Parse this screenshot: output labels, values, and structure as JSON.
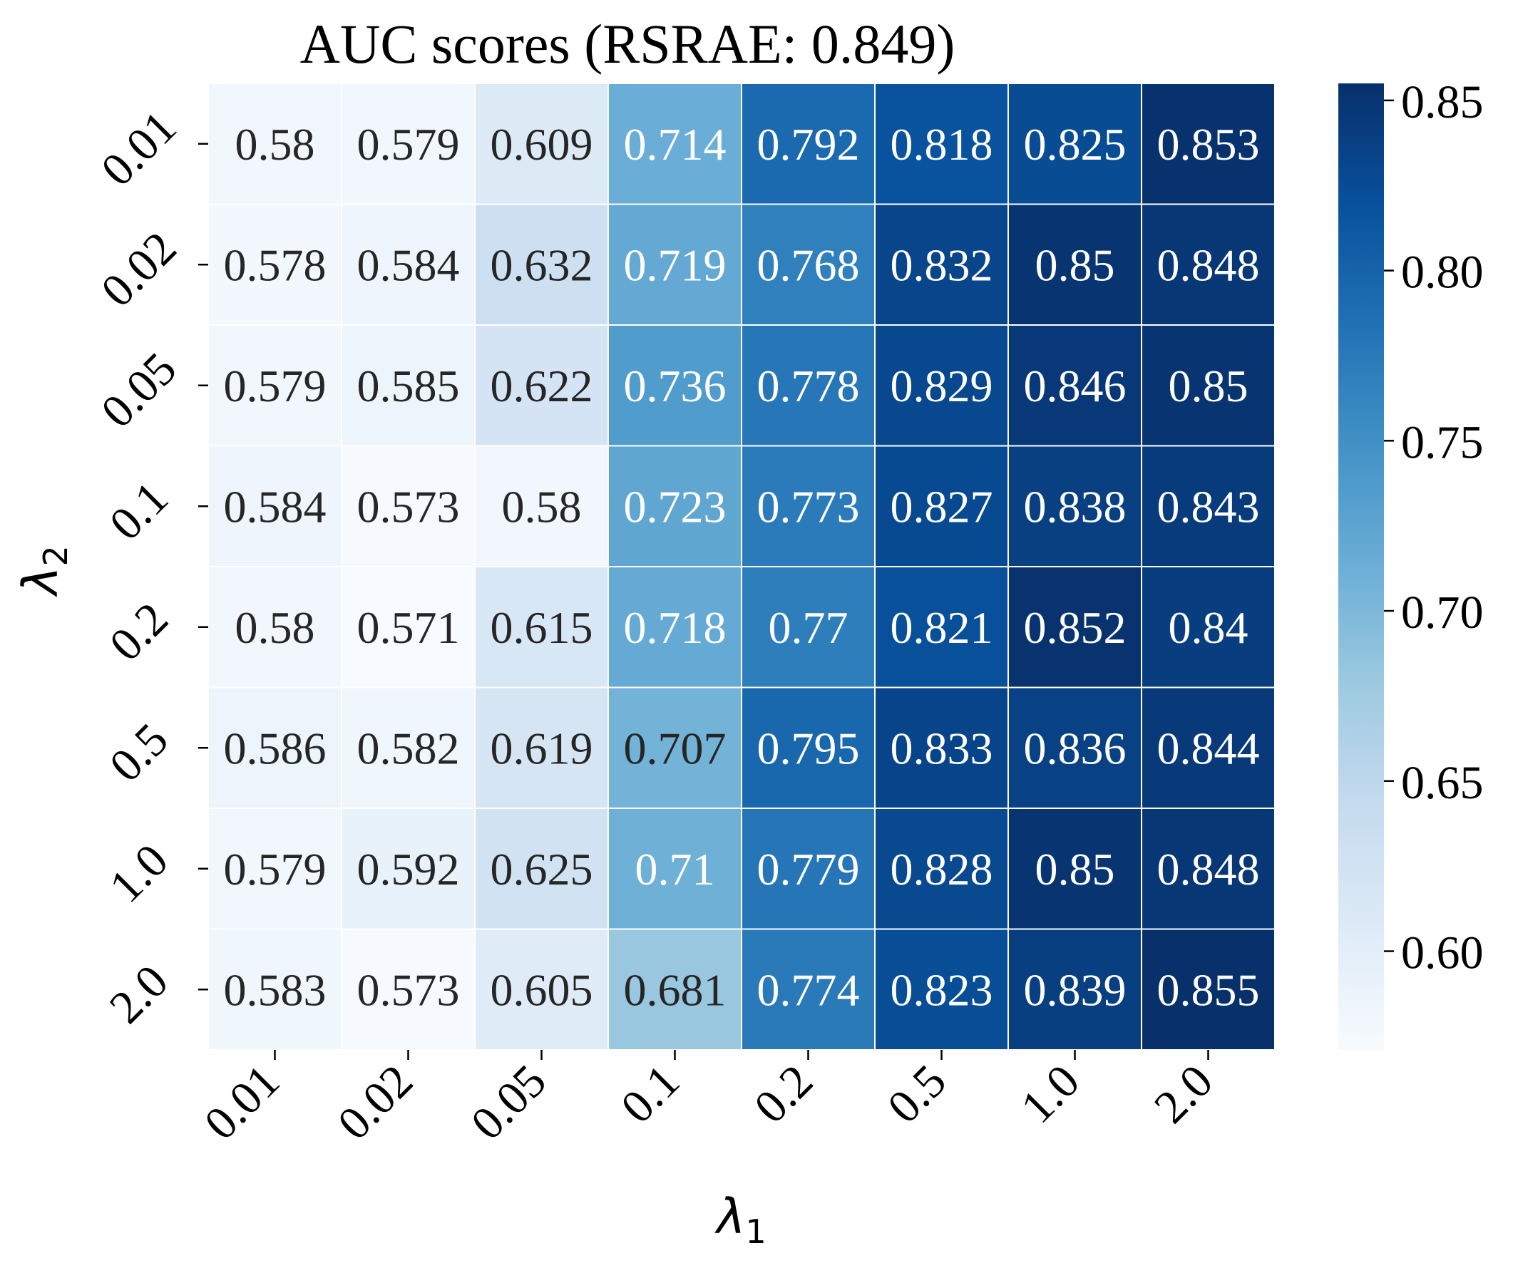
{
  "chart_data": {
    "type": "heatmap",
    "title": "AUC scores (RSRAE: 0.849)",
    "xlabel_symbol": "λ",
    "xlabel_sub": "1",
    "ylabel_symbol": "λ",
    "ylabel_sub": "2",
    "x_categories": [
      "0.01",
      "0.02",
      "0.05",
      "0.1",
      "0.2",
      "0.5",
      "1.0",
      "2.0"
    ],
    "y_categories": [
      "0.01",
      "0.02",
      "0.05",
      "0.1",
      "0.2",
      "0.5",
      "1.0",
      "2.0"
    ],
    "values": [
      [
        0.58,
        0.579,
        0.609,
        0.714,
        0.792,
        0.818,
        0.825,
        0.853
      ],
      [
        0.578,
        0.584,
        0.632,
        0.719,
        0.768,
        0.832,
        0.85,
        0.848
      ],
      [
        0.579,
        0.585,
        0.622,
        0.736,
        0.778,
        0.829,
        0.846,
        0.85
      ],
      [
        0.584,
        0.573,
        0.58,
        0.723,
        0.773,
        0.827,
        0.838,
        0.843
      ],
      [
        0.58,
        0.571,
        0.615,
        0.718,
        0.77,
        0.821,
        0.852,
        0.84
      ],
      [
        0.586,
        0.582,
        0.619,
        0.707,
        0.795,
        0.833,
        0.836,
        0.844
      ],
      [
        0.579,
        0.592,
        0.625,
        0.71,
        0.779,
        0.828,
        0.85,
        0.848
      ],
      [
        0.583,
        0.573,
        0.605,
        0.681,
        0.774,
        0.823,
        0.839,
        0.855
      ]
    ],
    "colorscale": "Blues",
    "vmin": 0.571,
    "vmax": 0.855,
    "colorbar_ticks": [
      "0.60",
      "0.65",
      "0.70",
      "0.75",
      "0.80",
      "0.85"
    ],
    "annotations": true,
    "grid_lines": "white",
    "colors": {
      "text_dark": "#262626",
      "text_light": "#ffffff",
      "cell_border": "#ffffff"
    }
  }
}
